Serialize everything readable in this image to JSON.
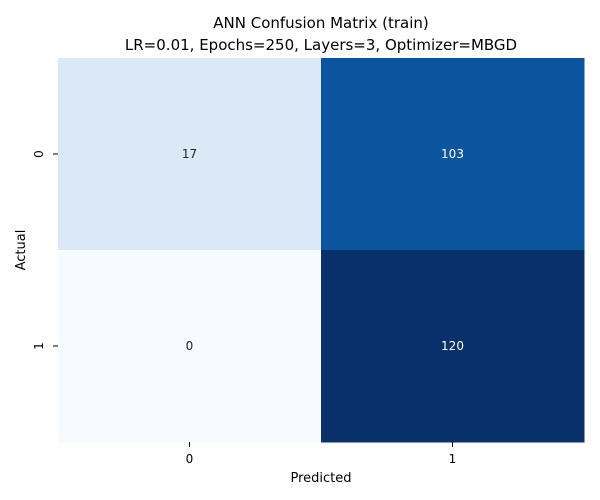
{
  "chart_data": {
    "type": "heatmap",
    "title": "ANN Confusion Matrix (train)",
    "subtitle": "LR=0.01, Epochs=250, Layers=3, Optimizer=MBGD",
    "xlabel": "Predicted",
    "ylabel": "Actual",
    "x_categories": [
      "0",
      "1"
    ],
    "y_categories": [
      "0",
      "1"
    ],
    "values": [
      [
        17,
        103
      ],
      [
        0,
        120
      ]
    ],
    "value_range": [
      0,
      120
    ],
    "colormap": "Blues",
    "colors": {
      "low": "#f7fbff",
      "high": "#08306b",
      "text_dark": "#262626",
      "text_light": "#ffffff"
    },
    "colorbar": false,
    "grid": false
  }
}
